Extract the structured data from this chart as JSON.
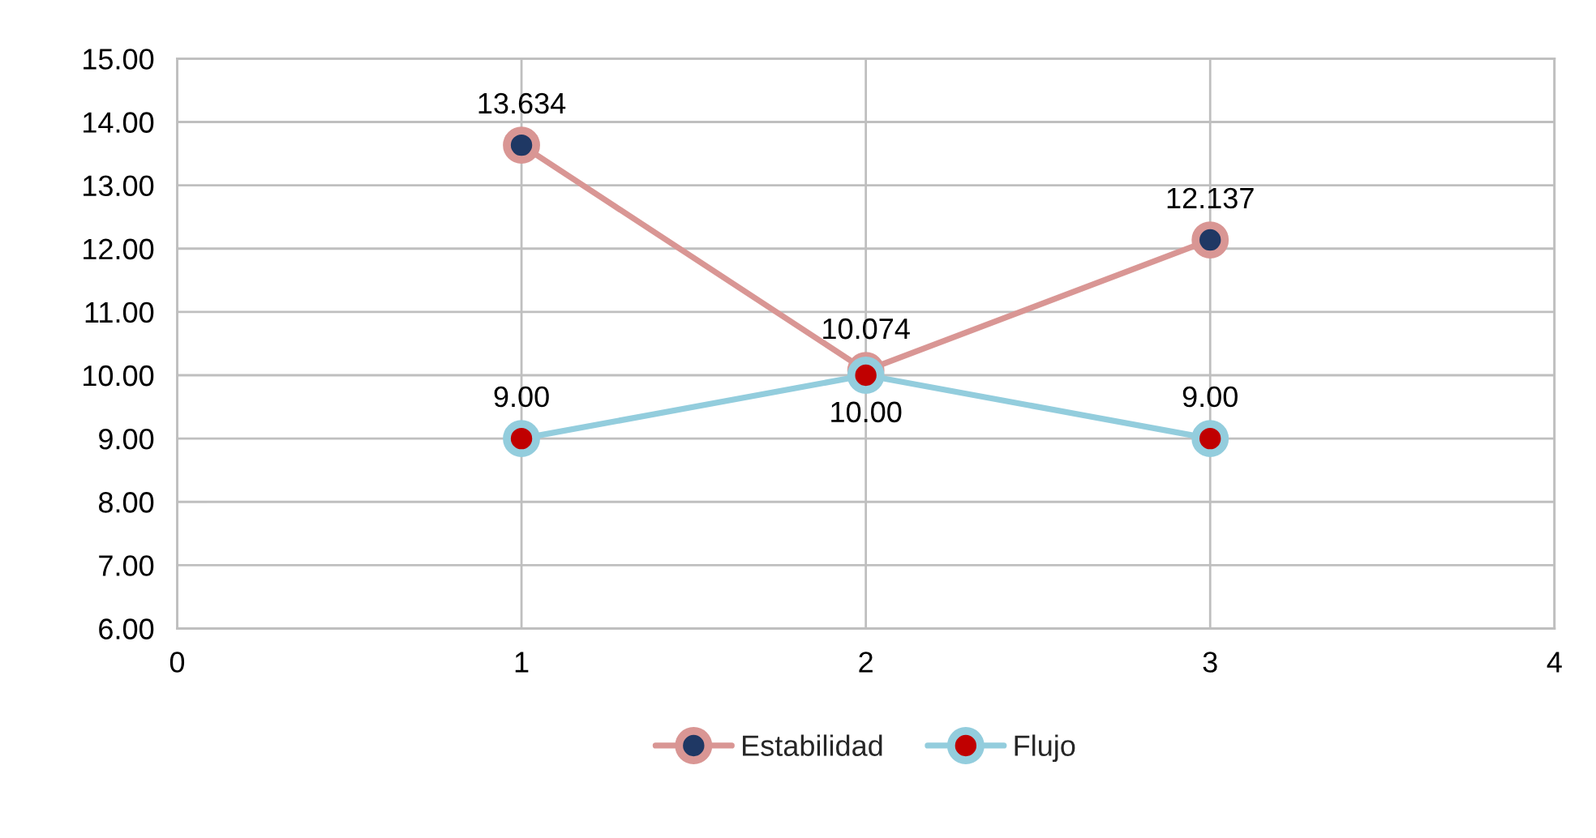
{
  "chart_data": {
    "type": "line",
    "x": [
      1,
      2,
      3
    ],
    "xlim": [
      0,
      4
    ],
    "xticks": [
      0,
      1,
      2,
      3,
      4
    ],
    "ylim": [
      6,
      15
    ],
    "yticks": [
      {
        "value": 6,
        "label": "6.00"
      },
      {
        "value": 7,
        "label": "7.00"
      },
      {
        "value": 8,
        "label": "8.00"
      },
      {
        "value": 9,
        "label": "9.00"
      },
      {
        "value": 10,
        "label": "10.00"
      },
      {
        "value": 11,
        "label": "11.00"
      },
      {
        "value": 12,
        "label": "12.00"
      },
      {
        "value": 13,
        "label": "13.00"
      },
      {
        "value": 14,
        "label": "14.00"
      },
      {
        "value": 15,
        "label": "15.00"
      }
    ],
    "grid": true,
    "legend": "bottom",
    "marker": "circle",
    "line_style": "solid",
    "series": [
      {
        "name": "Estabilidad",
        "color": "#d99694",
        "values": [
          13.634,
          10.074,
          12.137
        ],
        "value_labels": [
          "13.634",
          "10.074",
          "12.137"
        ]
      },
      {
        "name": "Flujo",
        "color": "#93cddd",
        "values": [
          9,
          10,
          9
        ],
        "value_labels": [
          "9.00",
          "10.00",
          "9.00"
        ]
      }
    ]
  }
}
